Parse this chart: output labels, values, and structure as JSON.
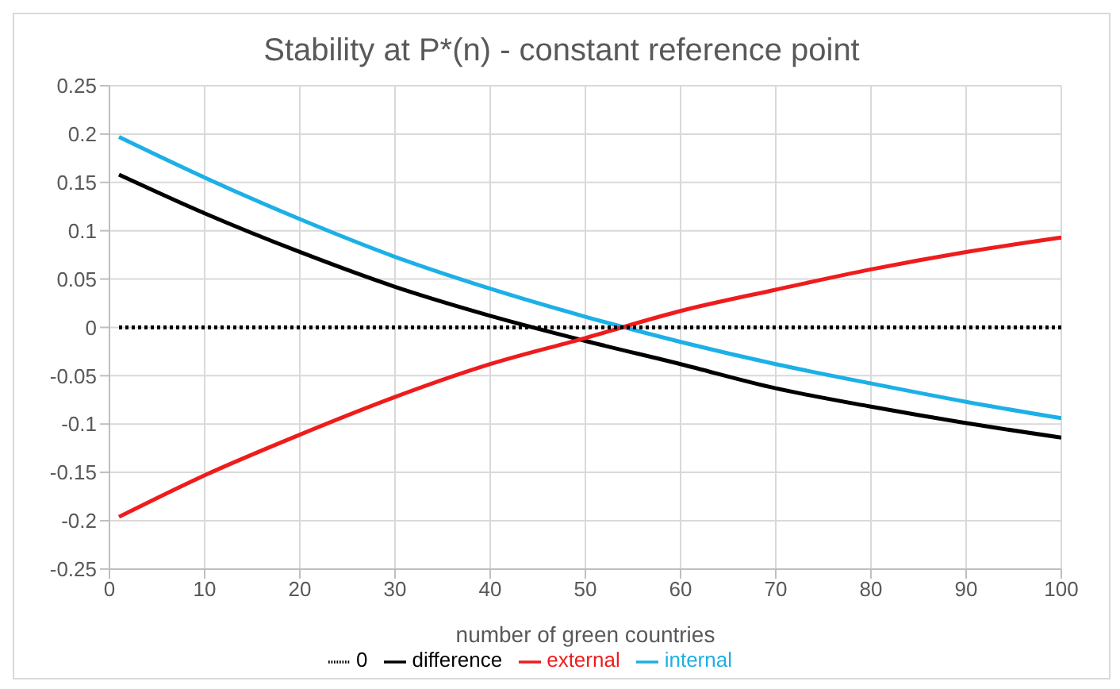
{
  "chart_data": {
    "type": "line",
    "title": "Stability at P*(n) - constant reference point",
    "xlabel": "number of green countries",
    "x": [
      1,
      10,
      20,
      30,
      40,
      50,
      60,
      70,
      80,
      90,
      100
    ],
    "series": [
      {
        "name": "internal",
        "color": "#1cb0e6",
        "values": [
          0.197,
          0.155,
          0.112,
          0.073,
          0.04,
          0.011,
          -0.015,
          -0.038,
          -0.058,
          -0.077,
          -0.094
        ]
      },
      {
        "name": "difference",
        "color": "#000000",
        "values": [
          0.158,
          0.118,
          0.078,
          0.042,
          0.012,
          -0.014,
          -0.038,
          -0.063,
          -0.082,
          -0.099,
          -0.114
        ]
      },
      {
        "name": "external",
        "color": "#ee1c1c",
        "values": [
          -0.196,
          -0.153,
          -0.111,
          -0.072,
          -0.038,
          -0.011,
          0.017,
          0.039,
          0.06,
          0.078,
          0.093
        ]
      },
      {
        "name": "0",
        "color": "#000000",
        "line_style": "dotted",
        "values": [
          0,
          0,
          0,
          0,
          0,
          0,
          0,
          0,
          0,
          0,
          0
        ]
      }
    ],
    "xlim": [
      0,
      100
    ],
    "xticks": [
      0,
      10,
      20,
      30,
      40,
      50,
      60,
      70,
      80,
      90,
      100
    ],
    "ylim": [
      -0.25,
      0.25
    ],
    "yticks": [
      -0.25,
      -0.2,
      -0.15,
      -0.1,
      -0.05,
      0,
      0.05,
      0.1,
      0.15,
      0.2,
      0.25
    ],
    "grid": true,
    "legend": "bottom",
    "marker": "none",
    "line_style": "solid"
  }
}
